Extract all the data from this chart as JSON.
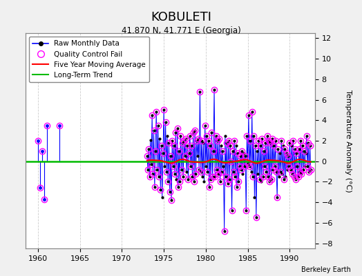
{
  "title": "KOBULETI",
  "subtitle": "41.870 N, 41.771 E (Georgia)",
  "credit": "Berkeley Earth",
  "ylabel": "Temperature Anomaly (°C)",
  "xlim": [
    1958.5,
    1993
  ],
  "ylim": [
    -8.5,
    12.5
  ],
  "yticks_right": [
    -8,
    -6,
    -4,
    -2,
    0,
    2,
    4,
    6,
    8,
    10,
    12
  ],
  "xticks": [
    1960,
    1965,
    1970,
    1975,
    1980,
    1985,
    1990
  ],
  "bg_color": "#f0f0f0",
  "plot_bg": "#ffffff",
  "raw_color": "#0000ff",
  "qc_color": "#ff00ff",
  "ma_color": "#ff0000",
  "trend_color": "#00bb00",
  "isolated_points": [
    [
      1960.04,
      2.0
    ],
    [
      1960.29,
      -2.6
    ],
    [
      1960.54,
      1.0
    ],
    [
      1960.71,
      -3.7
    ],
    [
      1961.04,
      3.5
    ],
    [
      1962.54,
      3.5
    ]
  ],
  "main_data": [
    [
      1973.0,
      0.5
    ],
    [
      1973.1,
      -0.8
    ],
    [
      1973.2,
      1.2
    ],
    [
      1973.3,
      -1.5
    ],
    [
      1973.4,
      2.1
    ],
    [
      1973.5,
      -0.3
    ],
    [
      1973.6,
      4.5
    ],
    [
      1973.7,
      -1.2
    ],
    [
      1973.8,
      3.0
    ],
    [
      1973.9,
      -2.5
    ],
    [
      1974.0,
      1.0
    ],
    [
      1974.1,
      4.8
    ],
    [
      1974.2,
      -0.8
    ],
    [
      1974.3,
      3.5
    ],
    [
      1974.4,
      -1.5
    ],
    [
      1974.5,
      2.2
    ],
    [
      1974.6,
      -2.8
    ],
    [
      1974.7,
      1.5
    ],
    [
      1974.8,
      -3.5
    ],
    [
      1974.9,
      0.8
    ],
    [
      1975.0,
      5.0
    ],
    [
      1975.1,
      -0.5
    ],
    [
      1975.2,
      3.8
    ],
    [
      1975.3,
      -1.0
    ],
    [
      1975.4,
      2.5
    ],
    [
      1975.5,
      -2.0
    ],
    [
      1975.6,
      1.8
    ],
    [
      1975.7,
      -3.0
    ],
    [
      1975.8,
      0.5
    ],
    [
      1975.9,
      -3.8
    ],
    [
      1976.0,
      2.0
    ],
    [
      1976.1,
      -0.5
    ],
    [
      1976.2,
      1.5
    ],
    [
      1976.3,
      -1.2
    ],
    [
      1976.4,
      2.8
    ],
    [
      1976.5,
      -1.8
    ],
    [
      1976.6,
      3.2
    ],
    [
      1976.7,
      -2.5
    ],
    [
      1976.8,
      1.0
    ],
    [
      1976.9,
      -2.0
    ],
    [
      1977.0,
      2.5
    ],
    [
      1977.1,
      -0.8
    ],
    [
      1977.2,
      1.8
    ],
    [
      1977.3,
      -1.5
    ],
    [
      1977.4,
      2.0
    ],
    [
      1977.5,
      0.5
    ],
    [
      1977.6,
      2.2
    ],
    [
      1977.7,
      -1.0
    ],
    [
      1977.8,
      1.5
    ],
    [
      1977.9,
      -1.8
    ],
    [
      1978.0,
      0.8
    ],
    [
      1978.1,
      2.5
    ],
    [
      1978.2,
      -0.5
    ],
    [
      1978.3,
      1.5
    ],
    [
      1978.4,
      -1.5
    ],
    [
      1978.5,
      2.8
    ],
    [
      1978.6,
      -2.0
    ],
    [
      1978.7,
      3.0
    ],
    [
      1978.8,
      -1.2
    ],
    [
      1978.9,
      2.0
    ],
    [
      1979.0,
      0.5
    ],
    [
      1979.1,
      2.2
    ],
    [
      1979.2,
      -0.8
    ],
    [
      1979.3,
      6.8
    ],
    [
      1979.4,
      -1.0
    ],
    [
      1979.5,
      2.0
    ],
    [
      1979.6,
      -1.5
    ],
    [
      1979.7,
      1.8
    ],
    [
      1979.8,
      -2.0
    ],
    [
      1979.9,
      3.5
    ],
    [
      1980.0,
      -0.5
    ],
    [
      1980.1,
      2.5
    ],
    [
      1980.2,
      -1.0
    ],
    [
      1980.3,
      2.0
    ],
    [
      1980.4,
      -2.5
    ],
    [
      1980.5,
      1.5
    ],
    [
      1980.6,
      -1.8
    ],
    [
      1980.7,
      2.8
    ],
    [
      1980.8,
      -1.5
    ],
    [
      1980.9,
      1.0
    ],
    [
      1981.0,
      7.0
    ],
    [
      1981.1,
      -1.5
    ],
    [
      1981.2,
      2.5
    ],
    [
      1981.3,
      -0.8
    ],
    [
      1981.4,
      2.0
    ],
    [
      1981.5,
      -1.2
    ],
    [
      1981.6,
      2.2
    ],
    [
      1981.7,
      -2.0
    ],
    [
      1981.8,
      1.5
    ],
    [
      1981.9,
      -1.0
    ],
    [
      1982.0,
      1.0
    ],
    [
      1982.1,
      -0.5
    ],
    [
      1982.2,
      -6.8
    ],
    [
      1982.3,
      2.5
    ],
    [
      1982.4,
      -1.5
    ],
    [
      1982.5,
      1.8
    ],
    [
      1982.6,
      -2.2
    ],
    [
      1982.7,
      2.0
    ],
    [
      1982.8,
      -1.8
    ],
    [
      1982.9,
      1.5
    ],
    [
      1983.0,
      0.0
    ],
    [
      1983.1,
      -4.8
    ],
    [
      1983.2,
      1.0
    ],
    [
      1983.3,
      -1.0
    ],
    [
      1983.4,
      2.0
    ],
    [
      1983.5,
      -1.5
    ],
    [
      1983.6,
      1.5
    ],
    [
      1983.7,
      -2.5
    ],
    [
      1983.8,
      0.8
    ],
    [
      1983.9,
      -2.0
    ],
    [
      1984.0,
      -0.5
    ],
    [
      1984.1,
      0.5
    ],
    [
      1984.2,
      -0.8
    ],
    [
      1984.3,
      1.0
    ],
    [
      1984.4,
      -1.2
    ],
    [
      1984.5,
      0.8
    ],
    [
      1984.6,
      -0.5
    ],
    [
      1984.7,
      0.5
    ],
    [
      1984.8,
      -4.8
    ],
    [
      1984.9,
      2.5
    ],
    [
      1985.0,
      -0.2
    ],
    [
      1985.1,
      4.5
    ],
    [
      1985.2,
      -0.5
    ],
    [
      1985.3,
      2.0
    ],
    [
      1985.4,
      -1.0
    ],
    [
      1985.5,
      4.8
    ],
    [
      1985.6,
      -1.5
    ],
    [
      1985.7,
      2.5
    ],
    [
      1985.8,
      -3.5
    ],
    [
      1985.9,
      1.5
    ],
    [
      1986.0,
      -5.5
    ],
    [
      1986.1,
      1.0
    ],
    [
      1986.2,
      -1.2
    ],
    [
      1986.3,
      2.0
    ],
    [
      1986.4,
      -1.8
    ],
    [
      1986.5,
      1.5
    ],
    [
      1986.6,
      -2.0
    ],
    [
      1986.7,
      2.2
    ],
    [
      1986.8,
      -1.5
    ],
    [
      1986.9,
      1.0
    ],
    [
      1987.0,
      -0.5
    ],
    [
      1987.1,
      1.8
    ],
    [
      1987.2,
      -1.0
    ],
    [
      1987.3,
      2.5
    ],
    [
      1987.4,
      -1.5
    ],
    [
      1987.5,
      2.0
    ],
    [
      1987.6,
      -2.0
    ],
    [
      1987.7,
      1.8
    ],
    [
      1987.8,
      -1.8
    ],
    [
      1987.9,
      2.2
    ],
    [
      1988.0,
      -0.8
    ],
    [
      1988.1,
      1.5
    ],
    [
      1988.2,
      -0.5
    ],
    [
      1988.3,
      2.0
    ],
    [
      1988.4,
      -1.0
    ],
    [
      1988.5,
      -3.5
    ],
    [
      1988.6,
      1.2
    ],
    [
      1988.7,
      -1.5
    ],
    [
      1988.8,
      0.8
    ],
    [
      1988.9,
      -1.0
    ],
    [
      1989.0,
      2.0
    ],
    [
      1989.1,
      -1.2
    ],
    [
      1989.2,
      1.5
    ],
    [
      1989.3,
      -1.8
    ],
    [
      1989.4,
      1.2
    ],
    [
      1989.5,
      -1.5
    ],
    [
      1989.6,
      0.8
    ],
    [
      1989.7,
      -0.8
    ],
    [
      1989.8,
      0.5
    ],
    [
      1989.9,
      -0.5
    ],
    [
      1990.0,
      1.8
    ],
    [
      1990.1,
      -0.8
    ],
    [
      1990.2,
      1.5
    ],
    [
      1990.3,
      -1.2
    ],
    [
      1990.4,
      2.0
    ],
    [
      1990.5,
      -1.5
    ],
    [
      1990.6,
      1.2
    ],
    [
      1990.7,
      -1.8
    ],
    [
      1990.8,
      0.8
    ],
    [
      1990.9,
      -0.5
    ],
    [
      1991.0,
      -1.5
    ],
    [
      1991.1,
      1.2
    ],
    [
      1991.2,
      -1.0
    ],
    [
      1991.3,
      2.0
    ],
    [
      1991.4,
      -1.2
    ],
    [
      1991.5,
      1.5
    ],
    [
      1991.6,
      -0.8
    ],
    [
      1991.7,
      1.0
    ],
    [
      1991.8,
      -0.5
    ],
    [
      1991.9,
      0.8
    ],
    [
      1992.0,
      2.5
    ],
    [
      1992.1,
      -0.5
    ],
    [
      1992.2,
      1.8
    ],
    [
      1992.3,
      -1.0
    ],
    [
      1992.4,
      1.5
    ],
    [
      1992.5,
      -0.8
    ]
  ],
  "trend_y": 0.0
}
